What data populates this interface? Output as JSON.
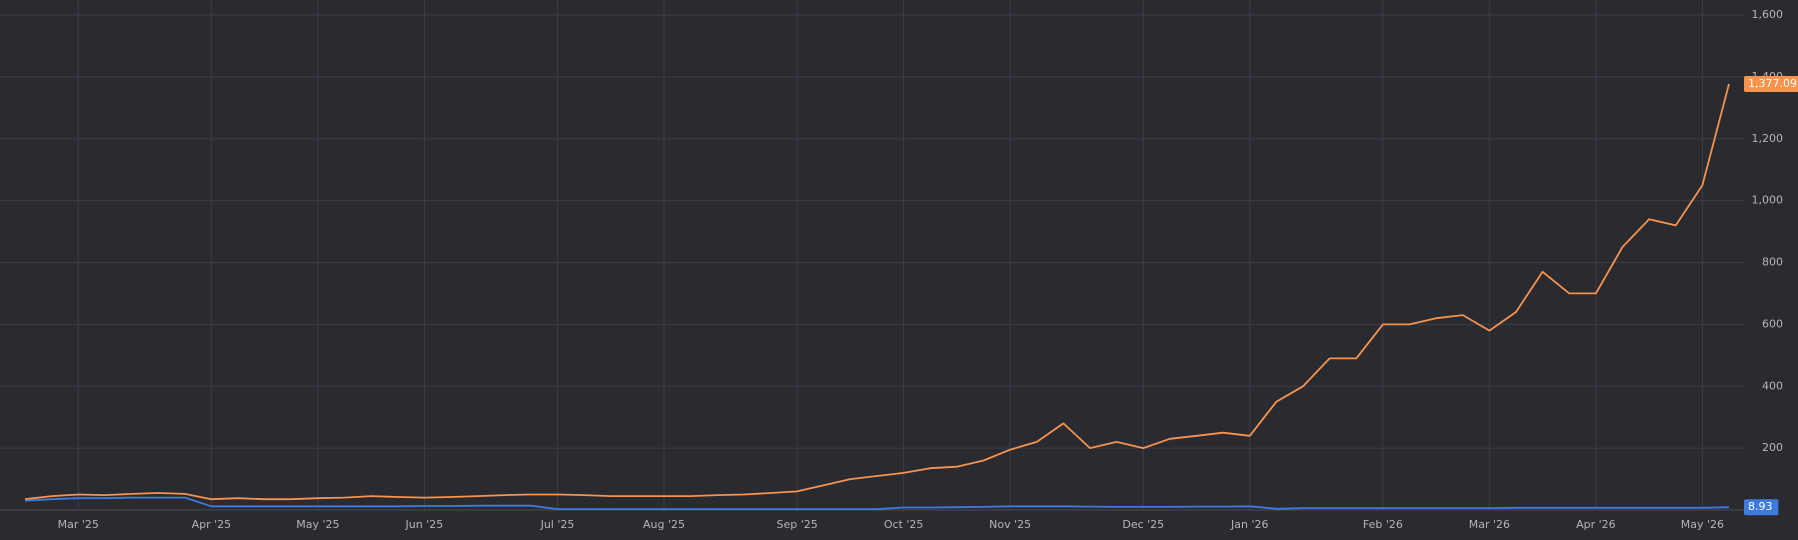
{
  "chart_data": {
    "type": "line",
    "categories": [
      null,
      null,
      "Mar '25",
      null,
      null,
      null,
      null,
      "Apr '25",
      null,
      null,
      null,
      "May '25",
      null,
      null,
      null,
      "Jun '25",
      null,
      null,
      null,
      null,
      "Jul '25",
      null,
      null,
      null,
      "Aug '25",
      null,
      null,
      null,
      null,
      "Sep '25",
      null,
      null,
      null,
      "Oct '25",
      null,
      null,
      null,
      "Nov '25",
      null,
      null,
      null,
      null,
      "Dec '25",
      null,
      null,
      null,
      "Jan '26",
      null,
      null,
      null,
      null,
      "Feb '26",
      null,
      null,
      null,
      "Mar '26",
      null,
      null,
      null,
      "Apr '26",
      null,
      null,
      null,
      "May '26",
      null
    ],
    "series": [
      {
        "color": "#f7934c",
        "values": [
          35,
          45,
          50,
          48,
          52,
          55,
          52,
          35,
          38,
          35,
          35,
          38,
          40,
          45,
          42,
          40,
          42,
          45,
          48,
          50,
          50,
          48,
          45,
          45,
          45,
          45,
          48,
          50,
          55,
          60,
          80,
          100,
          110,
          120,
          135,
          140,
          160,
          195,
          220,
          280,
          200,
          220,
          200,
          230,
          240,
          250,
          240,
          350,
          400,
          490,
          490,
          600,
          600,
          620,
          630,
          580,
          640,
          770,
          700,
          700,
          850,
          940,
          920,
          1050,
          1377.09
        ],
        "value_labels": [
          null,
          null,
          null,
          null,
          null,
          null,
          null,
          null,
          null,
          null,
          null,
          null,
          null,
          null,
          null,
          null,
          null,
          null,
          null,
          null,
          null,
          null,
          null,
          null,
          null,
          null,
          null,
          null,
          null,
          null,
          null,
          null,
          null,
          null,
          null,
          null,
          null,
          null,
          null,
          null,
          null,
          null,
          null,
          null,
          null,
          null,
          null,
          null,
          null,
          null,
          null,
          null,
          null,
          null,
          null,
          null,
          null,
          null,
          null,
          null,
          null,
          null,
          null,
          null,
          "1,377.09"
        ]
      },
      {
        "color": "#3d7be0",
        "values": [
          30,
          35,
          38,
          38,
          40,
          40,
          40,
          12,
          12,
          12,
          12,
          12,
          12,
          12,
          12,
          13,
          13,
          14,
          14,
          14,
          3,
          3,
          3,
          3,
          3,
          3,
          3,
          3,
          3,
          3,
          3,
          3,
          3,
          8,
          8,
          9,
          10,
          12,
          12,
          12,
          11,
          10,
          10,
          10,
          11,
          11,
          12,
          4,
          6,
          6,
          6,
          6,
          6,
          6,
          6,
          6,
          7,
          7,
          7,
          7,
          7,
          7,
          7,
          7,
          8.93
        ],
        "value_labels": [
          null,
          null,
          null,
          null,
          null,
          null,
          null,
          null,
          null,
          null,
          null,
          null,
          null,
          null,
          null,
          null,
          null,
          null,
          null,
          null,
          null,
          null,
          null,
          null,
          null,
          null,
          null,
          null,
          null,
          null,
          null,
          null,
          null,
          null,
          null,
          null,
          null,
          null,
          null,
          null,
          null,
          null,
          null,
          null,
          null,
          null,
          null,
          null,
          null,
          null,
          null,
          null,
          null,
          null,
          null,
          null,
          null,
          null,
          null,
          null,
          null,
          null,
          null,
          null,
          "8.93"
        ]
      }
    ],
    "ylim": [
      0,
      1600
    ],
    "yticks": [
      {
        "value": 200,
        "label": "200"
      },
      {
        "value": 400,
        "label": "400"
      },
      {
        "value": 600,
        "label": "600"
      },
      {
        "value": 800,
        "label": "800"
      },
      {
        "value": 1000,
        "label": "1,000"
      },
      {
        "value": 1200,
        "label": "1,200"
      },
      {
        "value": 1400,
        "label": "1,400"
      },
      {
        "value": 1600,
        "label": "1,600"
      }
    ],
    "grid": true
  }
}
